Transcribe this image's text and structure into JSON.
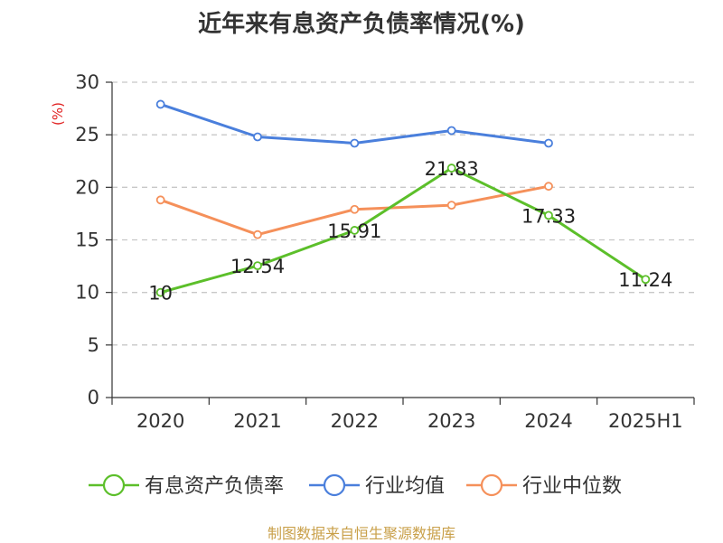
{
  "title": "近年来有息资产负债率情况(%)",
  "source": "制图数据来自恒生聚源数据库",
  "chart_data": {
    "type": "line",
    "unit": "(%)",
    "categories": [
      "2020",
      "2021",
      "2022",
      "2023",
      "2024",
      "2025H1"
    ],
    "ylim": [
      0,
      30
    ],
    "yticks": [
      0,
      5,
      10,
      15,
      20,
      25,
      30
    ],
    "grid": true,
    "legend_position": "bottom",
    "series": [
      {
        "name": "有息资产负债率",
        "color": "#5cbf2a",
        "values": [
          10,
          12.54,
          15.91,
          21.83,
          17.33,
          11.24
        ],
        "labels": [
          "10",
          "12.54",
          "15.91",
          "21.83",
          "17.33",
          "11.24"
        ]
      },
      {
        "name": "行业均值",
        "color": "#4a7fdc",
        "values": [
          27.9,
          24.8,
          24.2,
          25.4,
          24.2,
          null
        ]
      },
      {
        "name": "行业中位数",
        "color": "#f5905a",
        "values": [
          18.8,
          15.5,
          17.9,
          18.3,
          20.1,
          null
        ]
      }
    ]
  }
}
